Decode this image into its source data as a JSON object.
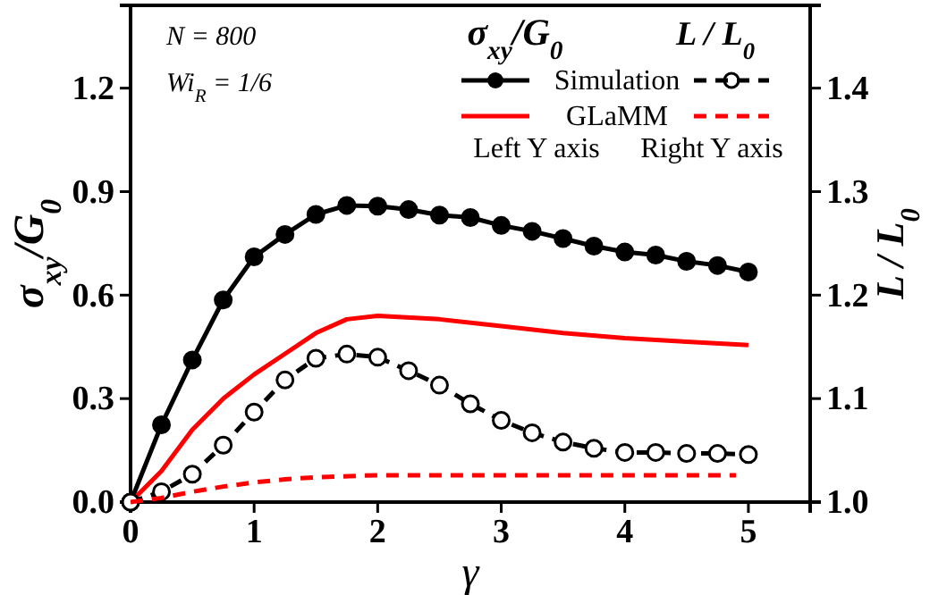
{
  "chart_data": {
    "type": "line",
    "xlabel": "γ",
    "ylabel": "σ$_{xy}$/G$_{0}$",
    "y2label": "L / L$_{0}$",
    "xlim": [
      0,
      5.5
    ],
    "xticks": [
      0,
      1,
      2,
      3,
      4,
      5
    ],
    "ylim": [
      0,
      1.44
    ],
    "yticks": [
      {
        "value": 0,
        "label": "0.0"
      },
      {
        "value": 0.3,
        "label": "0.3"
      },
      {
        "value": 0.6,
        "label": "0.6"
      },
      {
        "value": 0.9,
        "label": "0.9"
      },
      {
        "value": 1.2,
        "label": "1.2"
      }
    ],
    "y2lim": [
      1,
      1.48
    ],
    "y2ticks": [
      {
        "value": 1,
        "label": "1.0"
      },
      {
        "value": 1.1,
        "label": "1.1"
      },
      {
        "value": 1.2,
        "label": "1.2"
      },
      {
        "value": 1.3,
        "label": "1.3"
      },
      {
        "value": 1.4,
        "label": "1.4"
      }
    ],
    "legend": "top right",
    "grid": false,
    "annotations": [
      "N = 800",
      "Wi$_{R}$ = 1/6",
      "σ$_{xy}$/G$_{0}$",
      "L / L$_{0}$",
      "Left Y axis",
      "Right Y axis"
    ],
    "series": [
      {
        "name": "Simulation",
        "color": "#000000",
        "marker": "circle",
        "line_style": "solid",
        "x": [
          0,
          0.25,
          0.5,
          0.75,
          1,
          1.25,
          1.5,
          1.75,
          2,
          2.25,
          2.5,
          2.75,
          3,
          3.25,
          3.5,
          3.75,
          4,
          4.25,
          4.5,
          4.75,
          5
        ],
        "values": [
          0,
          0.224,
          0.412,
          0.586,
          0.711,
          0.776,
          0.834,
          0.86,
          0.858,
          0.848,
          0.832,
          0.825,
          0.802,
          0.785,
          0.764,
          0.742,
          0.725,
          0.716,
          0.698,
          0.686,
          0.667
        ]
      },
      {
        "name": "GLaMM",
        "color": "#ff0000",
        "marker": "none",
        "line_style": "solid",
        "x": [
          0,
          0.25,
          0.5,
          0.75,
          1,
          1.25,
          1.5,
          1.75,
          2,
          2.5,
          3,
          3.5,
          4,
          4.5,
          5
        ],
        "values": [
          0,
          0.09,
          0.21,
          0.3,
          0.37,
          0.43,
          0.49,
          0.53,
          0.54,
          0.53,
          0.51,
          0.49,
          0.475,
          0.465,
          0.455
        ]
      },
      {
        "color": "#000000",
        "marker": "circle",
        "line_style": "dashed",
        "axis": "y2",
        "x": [
          0,
          0.25,
          0.5,
          0.75,
          1,
          1.25,
          1.5,
          1.75,
          2,
          2.25,
          2.5,
          2.75,
          3,
          3.25,
          3.5,
          3.75,
          4,
          4.25,
          4.5,
          4.75,
          5
        ],
        "values": [
          1,
          1.01,
          1.027,
          1.055,
          1.087,
          1.118,
          1.139,
          1.143,
          1.14,
          1.127,
          1.113,
          1.095,
          1.079,
          1.067,
          1.058,
          1.052,
          1.048,
          1.048,
          1.047,
          1.047,
          1.046
        ]
      },
      {
        "color": "#ff0000",
        "marker": "none",
        "line_style": "dashed",
        "axis": "y2",
        "x": [
          0,
          0.25,
          0.5,
          0.75,
          1,
          1.25,
          1.5,
          2,
          3,
          4,
          4.9
        ],
        "values": [
          1,
          1.004,
          1.01,
          1.015,
          1.019,
          1.022,
          1.024,
          1.026,
          1.026,
          1.026,
          1.026
        ]
      }
    ]
  }
}
